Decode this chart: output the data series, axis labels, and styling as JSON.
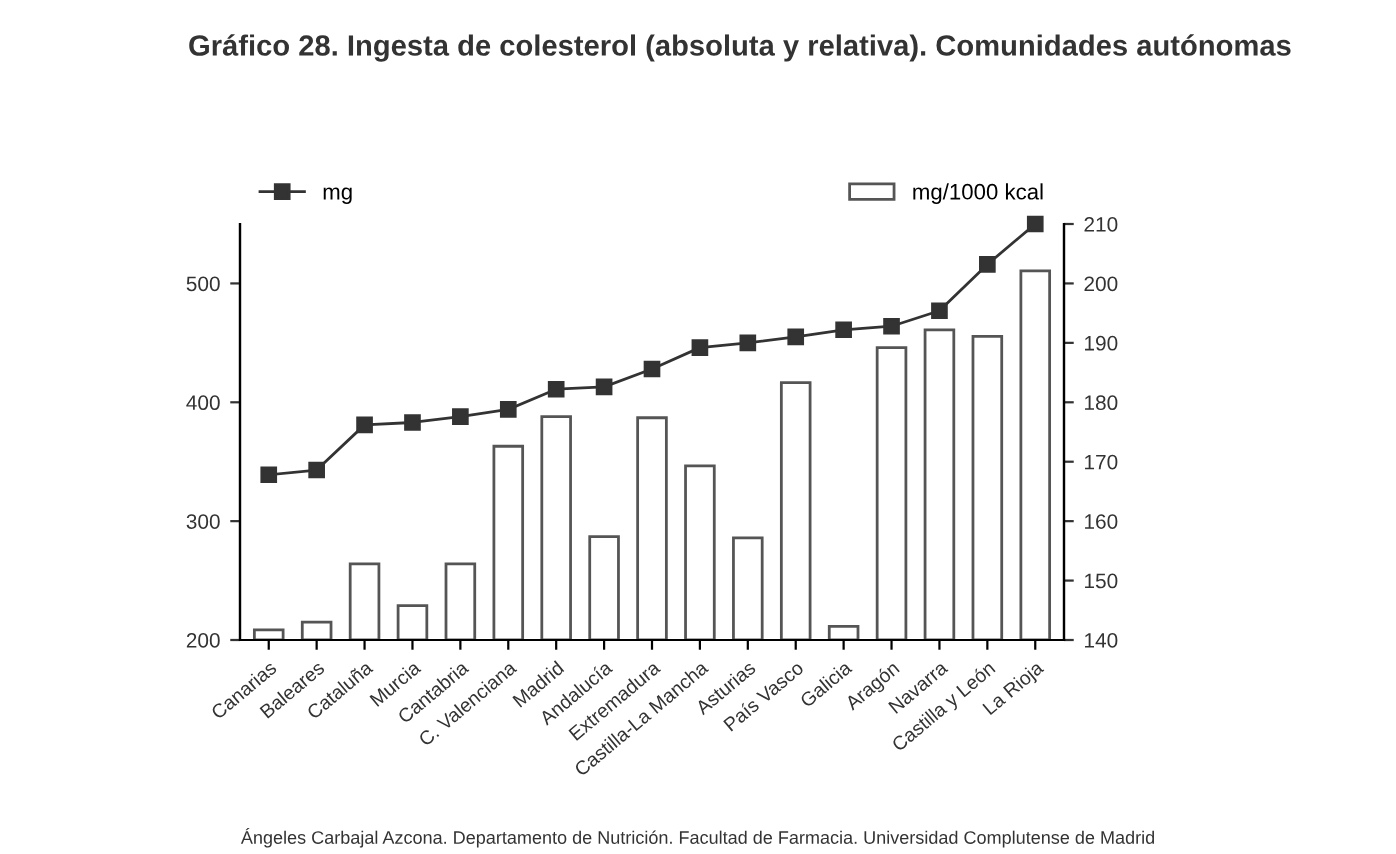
{
  "chart_data": {
    "type": "bar",
    "title": "Gráfico 28. Ingesta de colesterol (absoluta y relativa). Comunidades autónomas",
    "categories": [
      "Canarias",
      "Baleares",
      "Cataluña",
      "Murcia",
      "Cantabria",
      "C. Valenciana",
      "Madrid",
      "Andalucía",
      "Extremadura",
      "Castilla-La Mancha",
      "Asturias",
      "País Vasco",
      "Galicia",
      "Aragón",
      "Navarra",
      "Castilla y León",
      "La Rioja"
    ],
    "series": [
      {
        "name": "mg/1000 kcal",
        "axis": "y2",
        "color": "#ffffff",
        "values": [
          141.7,
          143,
          152.8,
          145.8,
          152.8,
          172.6,
          177.6,
          157.4,
          177.4,
          169.3,
          157.2,
          183.3,
          142.3,
          189.2,
          192.2,
          191.1,
          202.1
        ]
      },
      {
        "name": "mg",
        "type": "line",
        "axis": "y",
        "color": "#333333",
        "marker": "square",
        "values": [
          339,
          343,
          381,
          383,
          388,
          394,
          411,
          413,
          428,
          446,
          450,
          455,
          461,
          464,
          477,
          516,
          550
        ]
      }
    ],
    "ylim": [
      200,
      550
    ],
    "yticks": [
      200,
      300,
      400,
      500
    ],
    "y2lim": [
      140,
      210
    ],
    "y2ticks": [
      140,
      150,
      160,
      170,
      180,
      190,
      200,
      210
    ],
    "legend": "top",
    "grid": false,
    "annotations": [
      "Ángeles Carbajal Azcona. Departamento de Nutrición. Facultad de Farmacia. Universidad Complutense de Madrid"
    ]
  }
}
